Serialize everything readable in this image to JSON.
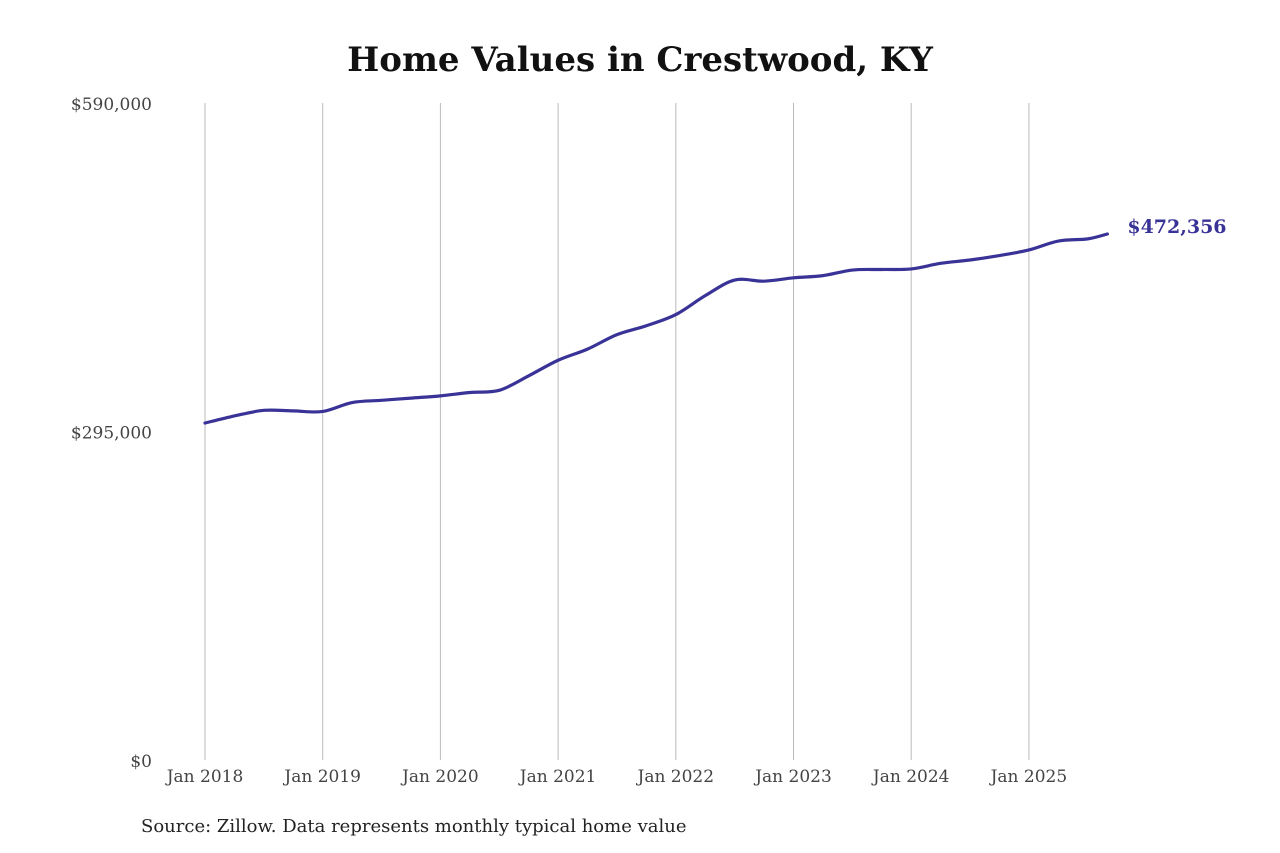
{
  "chart_data": {
    "type": "line",
    "title": "Home Values in Crestwood, KY",
    "xlabel": "",
    "ylabel": "",
    "ylim": [
      0,
      590000
    ],
    "y_ticks": [
      "$0",
      "$295,000",
      "$590,000"
    ],
    "y_tick_values": [
      0,
      295000,
      590000
    ],
    "x_ticks": [
      "Jan 2018",
      "Jan 2019",
      "Jan 2020",
      "Jan 2021",
      "Jan 2022",
      "Jan 2023",
      "Jan 2024",
      "Jan 2025"
    ],
    "x_tick_values": [
      "2018-01",
      "2019-01",
      "2020-01",
      "2021-01",
      "2022-01",
      "2023-01",
      "2024-01",
      "2025-01"
    ],
    "grid": "vertical",
    "line_color": "#3a3397",
    "end_label": "$472,356",
    "series": [
      {
        "x": [
          "2018-01",
          "2018-04",
          "2018-07",
          "2018-10",
          "2019-01",
          "2019-04",
          "2019-07",
          "2019-10",
          "2020-01",
          "2020-04",
          "2020-07",
          "2020-10",
          "2021-01",
          "2021-04",
          "2021-07",
          "2021-10",
          "2022-01",
          "2022-04",
          "2022-07",
          "2022-10",
          "2023-01",
          "2023-04",
          "2023-07",
          "2023-10",
          "2024-01",
          "2024-04",
          "2024-07",
          "2024-10",
          "2025-01",
          "2025-04",
          "2025-07",
          "2025-09"
        ],
        "values": [
          302600,
          309000,
          314000,
          313500,
          313000,
          321000,
          323000,
          325000,
          327000,
          330000,
          332000,
          345000,
          359000,
          369000,
          382000,
          390000,
          400000,
          417000,
          431000,
          430000,
          433000,
          435000,
          440000,
          440500,
          441000,
          446000,
          449000,
          453000,
          458000,
          466000,
          468000,
          472356
        ]
      }
    ]
  },
  "source": "Source: Zillow. Data represents monthly typical home value"
}
